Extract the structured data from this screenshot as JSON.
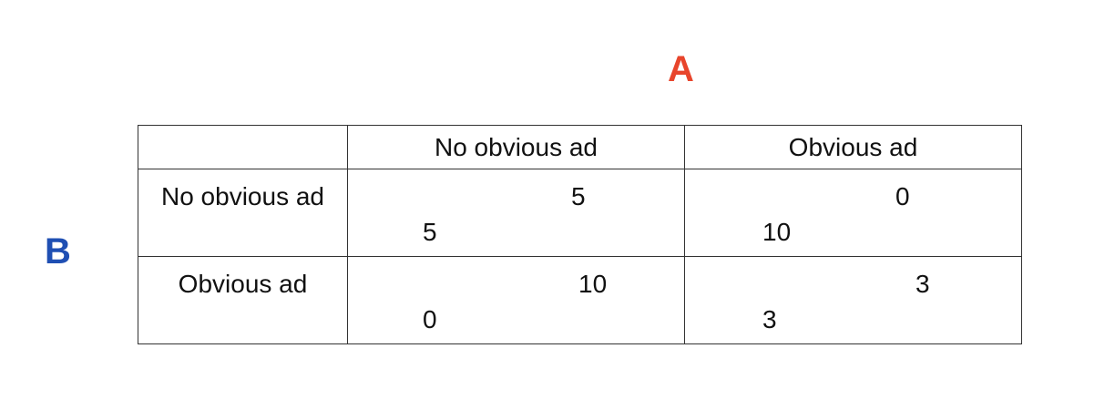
{
  "player_a": {
    "label": "A",
    "color": "#e8452c"
  },
  "player_b": {
    "label": "B",
    "color": "#1f4fb3"
  },
  "columns": [
    "No obvious ad",
    "Obvious ad"
  ],
  "rows": [
    {
      "label": "No obvious ad",
      "cells": [
        {
          "a_payoff": "5",
          "b_payoff": "5"
        },
        {
          "a_payoff": "0",
          "b_payoff": "10"
        }
      ]
    },
    {
      "label": "Obvious ad",
      "cells": [
        {
          "a_payoff": "10",
          "b_payoff": "0"
        },
        {
          "a_payoff": "3",
          "b_payoff": "3"
        }
      ]
    }
  ]
}
